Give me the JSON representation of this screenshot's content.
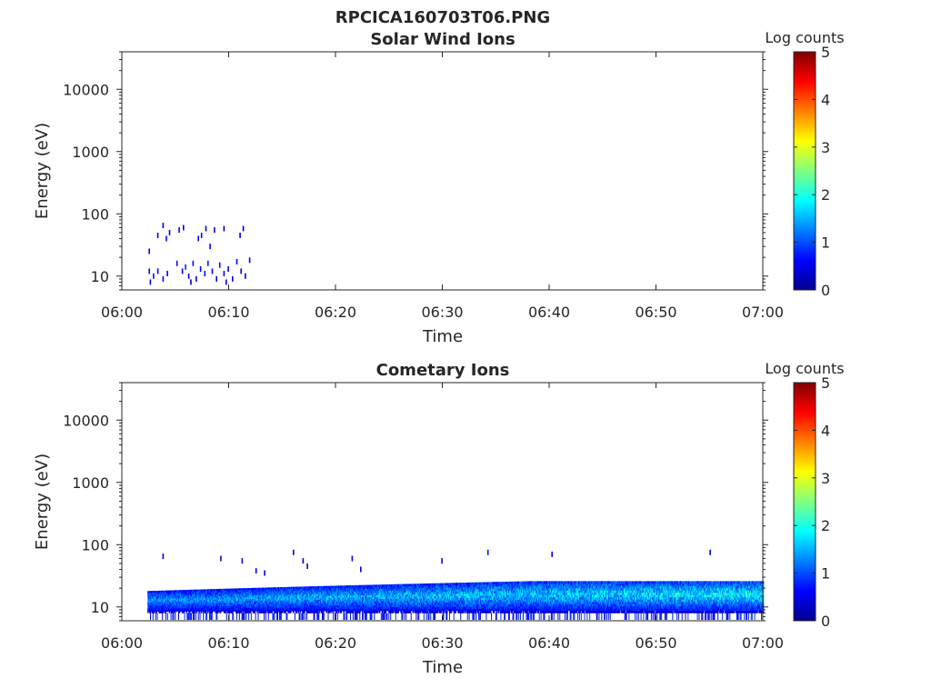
{
  "figure_title": "RPCICA160703T06.PNG",
  "colors": {
    "jet": [
      "#00008f",
      "#0000ff",
      "#0080ff",
      "#00ffff",
      "#80ff80",
      "#ffff00",
      "#ff8000",
      "#ff0000",
      "#800000"
    ]
  },
  "chart_data": [
    {
      "type": "heatmap",
      "title": "Solar Wind Ions",
      "xlabel": "Time",
      "ylabel": "Energy (eV)",
      "x_ticks": [
        "06:00",
        "06:10",
        "06:20",
        "06:30",
        "06:40",
        "06:50",
        "07:00"
      ],
      "xlim_minutes": [
        0,
        60
      ],
      "y_ticks": [
        10,
        100,
        1000,
        10000
      ],
      "y_tick_labels": [
        "10",
        "100",
        "1000",
        "10000"
      ],
      "y_scale": "log",
      "ylim": [
        6,
        40000
      ],
      "colorbar": {
        "label": "Log counts",
        "range": [
          0,
          5
        ],
        "ticks": [
          "0",
          "1",
          "2",
          "3",
          "4",
          "5"
        ]
      },
      "grid": false,
      "description_of_data": "sparse low-count pixels between 06:02 and 06:12 at 8-70 eV",
      "bins": [
        [
          2.5,
          25,
          0.6
        ],
        [
          3.3,
          45,
          0.5
        ],
        [
          3.8,
          65,
          0.4
        ],
        [
          4.1,
          40,
          0.6
        ],
        [
          4.4,
          50,
          0.5
        ],
        [
          5.3,
          55,
          0.5
        ],
        [
          5.7,
          60,
          0.4
        ],
        [
          7.1,
          40,
          0.5
        ],
        [
          7.4,
          45,
          0.6
        ],
        [
          7.8,
          58,
          0.5
        ],
        [
          8.2,
          30,
          0.6
        ],
        [
          8.6,
          55,
          0.5
        ],
        [
          9.5,
          58,
          0.4
        ],
        [
          11.0,
          45,
          0.5
        ],
        [
          11.3,
          58,
          0.4
        ],
        [
          2.5,
          12,
          0.6
        ],
        [
          2.9,
          10,
          0.7
        ],
        [
          3.3,
          12,
          0.6
        ],
        [
          3.8,
          9,
          0.5
        ],
        [
          4.2,
          11,
          0.6
        ],
        [
          5.1,
          16,
          0.7
        ],
        [
          5.6,
          12,
          0.6
        ],
        [
          5.9,
          14,
          0.8
        ],
        [
          6.2,
          10,
          0.6
        ],
        [
          6.6,
          16,
          0.7
        ],
        [
          6.9,
          9,
          0.5
        ],
        [
          7.3,
          13,
          0.6
        ],
        [
          7.7,
          11,
          0.7
        ],
        [
          8.0,
          16,
          0.8
        ],
        [
          8.4,
          12,
          0.6
        ],
        [
          8.8,
          9,
          0.5
        ],
        [
          9.1,
          15,
          0.7
        ],
        [
          9.5,
          11,
          0.6
        ],
        [
          9.9,
          13,
          0.6
        ],
        [
          10.3,
          9,
          0.5
        ],
        [
          10.7,
          17,
          0.6
        ],
        [
          11.1,
          12,
          0.6
        ],
        [
          11.5,
          10,
          0.5
        ],
        [
          11.9,
          18,
          0.6
        ],
        [
          2.6,
          8,
          0.5
        ],
        [
          6.4,
          8,
          0.4
        ],
        [
          9.7,
          8,
          0.5
        ]
      ]
    },
    {
      "type": "heatmap",
      "title": "Cometary Ions",
      "xlabel": "Time",
      "ylabel": "Energy (eV)",
      "x_ticks": [
        "06:00",
        "06:10",
        "06:20",
        "06:30",
        "06:40",
        "06:50",
        "07:00"
      ],
      "xlim_minutes": [
        0,
        60
      ],
      "y_ticks": [
        10,
        100,
        1000,
        10000
      ],
      "y_tick_labels": [
        "10",
        "100",
        "1000",
        "10000"
      ],
      "y_scale": "log",
      "ylim": [
        6,
        40000
      ],
      "colorbar": {
        "label": "Log counts",
        "range": [
          0,
          5
        ],
        "ticks": [
          "0",
          "1",
          "2",
          "3",
          "4",
          "5"
        ]
      },
      "grid": false,
      "band": {
        "t_start": 2.4,
        "t_end": 60,
        "e_low": 8,
        "e_high_start": 18,
        "e_high_end": 26,
        "peak_log_counts": 2.0
      },
      "bins": [
        [
          3.8,
          65,
          0.5
        ],
        [
          9.2,
          60,
          0.4
        ],
        [
          11.2,
          55,
          0.5
        ],
        [
          12.5,
          38,
          0.5
        ],
        [
          13.3,
          35,
          0.4
        ],
        [
          16.0,
          75,
          0.5
        ],
        [
          16.9,
          55,
          0.4
        ],
        [
          17.3,
          45,
          0.4
        ],
        [
          21.5,
          60,
          0.5
        ],
        [
          22.3,
          40,
          0.4
        ],
        [
          29.9,
          55,
          0.5
        ],
        [
          34.2,
          75,
          0.7
        ],
        [
          40.2,
          70,
          0.5
        ],
        [
          55.0,
          75,
          0.5
        ]
      ]
    }
  ]
}
